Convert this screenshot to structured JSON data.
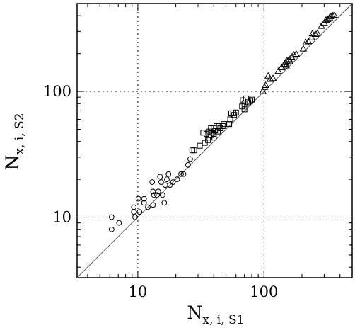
{
  "chart_data": {
    "type": "scatter",
    "title": "",
    "xlabel": {
      "main": "N",
      "sub": "x, i, S1"
    },
    "ylabel": {
      "main": "N",
      "sub": "x, i, S2"
    },
    "x_scale": "log",
    "y_scale": "log",
    "xlim": [
      3.3,
      500
    ],
    "ylim": [
      3.3,
      500
    ],
    "x_ticks": [
      {
        "value": 10,
        "label": "10"
      },
      {
        "value": 100,
        "label": "100"
      }
    ],
    "y_ticks": [
      {
        "value": 10,
        "label": "10"
      },
      {
        "value": 100,
        "label": "100"
      }
    ],
    "grid": {
      "style": "dotted",
      "at": [
        10,
        100
      ]
    },
    "reference_line": "y = x",
    "series": [
      {
        "marker": "circle",
        "points": [
          [
            6.2,
            10
          ],
          [
            6.2,
            8
          ],
          [
            7.1,
            9
          ],
          [
            9.3,
            12
          ],
          [
            9.3,
            11
          ],
          [
            9.5,
            10
          ],
          [
            10.1,
            14
          ],
          [
            10.3,
            11
          ],
          [
            11.2,
            14
          ],
          [
            11.2,
            13
          ],
          [
            12,
            12
          ],
          [
            13,
            19
          ],
          [
            13.2,
            16
          ],
          [
            13.2,
            12.5
          ],
          [
            13.4,
            15
          ],
          [
            14.2,
            15
          ],
          [
            14.5,
            16
          ],
          [
            15,
            21
          ],
          [
            15.3,
            19
          ],
          [
            15.7,
            15
          ],
          [
            16.2,
            13
          ],
          [
            16.5,
            18
          ],
          [
            17,
            20
          ],
          [
            17.5,
            22
          ],
          [
            18,
            18
          ],
          [
            19,
            19
          ],
          [
            20.5,
            20
          ],
          [
            22,
            22
          ],
          [
            23,
            22
          ],
          [
            25,
            26
          ],
          [
            26,
            29
          ]
        ]
      },
      {
        "marker": "square",
        "points": [
          [
            27,
            34
          ],
          [
            28,
            34
          ],
          [
            31,
            37
          ],
          [
            33,
            47
          ],
          [
            34,
            39
          ],
          [
            35,
            46
          ],
          [
            36,
            41
          ],
          [
            37,
            48
          ],
          [
            37,
            43
          ],
          [
            38,
            45
          ],
          [
            38,
            51
          ],
          [
            39,
            47
          ],
          [
            40,
            51
          ],
          [
            40,
            46
          ],
          [
            40,
            43
          ],
          [
            41,
            49
          ],
          [
            42,
            53
          ],
          [
            43,
            48
          ],
          [
            44,
            53
          ],
          [
            45,
            51
          ],
          [
            47,
            53
          ],
          [
            48,
            55
          ],
          [
            53,
            55
          ],
          [
            54,
            60
          ],
          [
            55,
            67
          ],
          [
            57,
            67
          ],
          [
            58,
            65
          ],
          [
            60,
            68
          ],
          [
            67,
            76
          ],
          [
            68,
            85
          ],
          [
            70,
            80
          ],
          [
            72,
            88
          ],
          [
            75,
            82
          ],
          [
            78,
            84
          ],
          [
            70,
            72
          ],
          [
            80,
            86
          ]
        ]
      },
      {
        "marker": "triangle",
        "points": [
          [
            98,
            100
          ],
          [
            101,
            108
          ],
          [
            103,
            112
          ],
          [
            108,
            133
          ],
          [
            112,
            125
          ],
          [
            118,
            127
          ],
          [
            130,
            145
          ],
          [
            138,
            155
          ],
          [
            145,
            165
          ],
          [
            148,
            170
          ],
          [
            150,
            160
          ],
          [
            152,
            175
          ],
          [
            158,
            180
          ],
          [
            160,
            172
          ],
          [
            165,
            188
          ],
          [
            172,
            195
          ],
          [
            180,
            198
          ],
          [
            205,
            218
          ],
          [
            215,
            245
          ],
          [
            225,
            250
          ],
          [
            238,
            268
          ],
          [
            242,
            288
          ],
          [
            255,
            285
          ],
          [
            265,
            290
          ],
          [
            285,
            330
          ],
          [
            300,
            350
          ],
          [
            310,
            370
          ],
          [
            320,
            375
          ],
          [
            330,
            385
          ],
          [
            340,
            395
          ],
          [
            350,
            400
          ],
          [
            360,
            405
          ]
        ]
      }
    ]
  }
}
